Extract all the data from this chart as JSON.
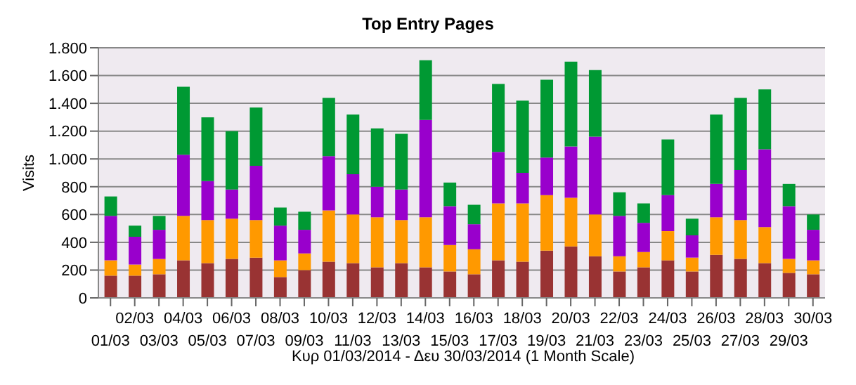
{
  "chart_data": {
    "type": "bar",
    "title": "Top Entry Pages",
    "xlabel": "Κυρ 01/03/2014 - Δευ 30/03/2014 (1 Month Scale)",
    "ylabel": "Visits",
    "categories": [
      "01/03",
      "02/03",
      "03/03",
      "04/03",
      "05/03",
      "06/03",
      "07/03",
      "08/03",
      "09/03",
      "10/03",
      "11/03",
      "12/03",
      "13/03",
      "14/03",
      "15/03",
      "16/03",
      "17/03",
      "18/03",
      "19/03",
      "20/03",
      "21/03",
      "22/03",
      "23/03",
      "24/03",
      "25/03",
      "26/03",
      "27/03",
      "28/03",
      "29/03",
      "30/03"
    ],
    "stacked": true,
    "series": [
      {
        "color": "#993333",
        "values": [
          160,
          160,
          170,
          270,
          250,
          280,
          290,
          150,
          200,
          260,
          250,
          220,
          250,
          220,
          190,
          170,
          270,
          260,
          340,
          370,
          300,
          190,
          220,
          270,
          190,
          310,
          280,
          250,
          180,
          170
        ]
      },
      {
        "color": "#ff9900",
        "values": [
          110,
          80,
          110,
          320,
          310,
          290,
          270,
          120,
          120,
          370,
          350,
          360,
          310,
          360,
          190,
          180,
          410,
          420,
          400,
          350,
          300,
          110,
          110,
          210,
          100,
          270,
          280,
          260,
          100,
          100
        ]
      },
      {
        "color": "#9900cc",
        "values": [
          320,
          200,
          210,
          440,
          280,
          210,
          390,
          250,
          170,
          390,
          290,
          220,
          220,
          700,
          280,
          180,
          370,
          220,
          270,
          370,
          560,
          290,
          210,
          260,
          160,
          240,
          360,
          560,
          380,
          220
        ]
      },
      {
        "color": "#009933",
        "values": [
          140,
          80,
          100,
          490,
          460,
          420,
          420,
          130,
          130,
          420,
          430,
          420,
          400,
          430,
          170,
          140,
          490,
          520,
          560,
          610,
          480,
          170,
          140,
          400,
          120,
          500,
          520,
          430,
          160,
          110
        ]
      }
    ],
    "ylim": [
      0,
      1800
    ],
    "yticks": [
      0,
      200,
      400,
      600,
      800,
      {
        "value": 1000,
        "label": "1.000"
      },
      {
        "value": 1200,
        "label": "1.200"
      },
      {
        "value": 1400,
        "label": "1.400"
      },
      {
        "value": 1600,
        "label": "1.600"
      },
      {
        "value": 1800,
        "label": "1.800"
      }
    ],
    "grid": "y"
  }
}
